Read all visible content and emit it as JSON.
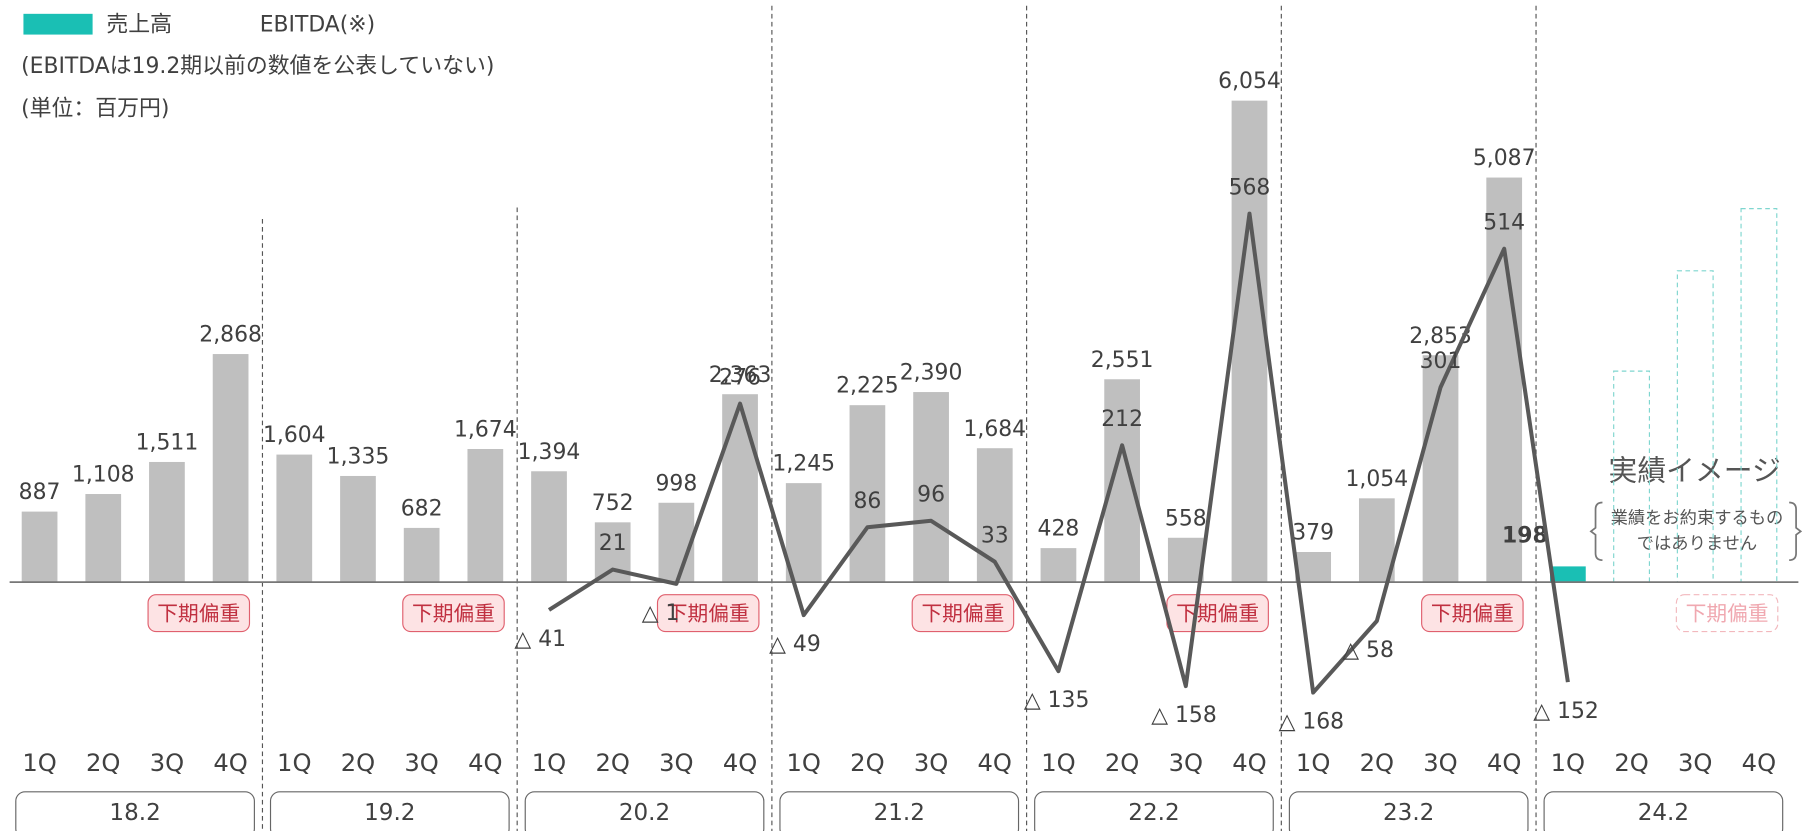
{
  "chart_data": {
    "type": "bar_line",
    "legend_notes": [
      "(EBITDAは19.2期以前の数値を公表していない)",
      "(単位：百万円)"
    ],
    "categories": [
      "1Q",
      "2Q",
      "3Q",
      "4Q",
      "1Q",
      "2Q",
      "3Q",
      "4Q",
      "1Q",
      "2Q",
      "3Q",
      "4Q",
      "1Q",
      "2Q",
      "3Q",
      "4Q",
      "1Q",
      "2Q",
      "3Q",
      "4Q",
      "1Q",
      "2Q",
      "3Q",
      "4Q",
      "1Q",
      "2Q",
      "3Q",
      "4Q"
    ],
    "groups": [
      {
        "label": "18.2",
        "note": "下期偏重"
      },
      {
        "label": "19.2",
        "note": "下期偏重"
      },
      {
        "label": "20.2",
        "note": "下期偏重"
      },
      {
        "label": "21.2",
        "note": "下期偏重"
      },
      {
        "label": "22.2",
        "note": "下期偏重"
      },
      {
        "label": "23.2",
        "note": "下期偏重"
      },
      {
        "label": "24.2",
        "note": "下期偏重"
      }
    ],
    "series": [
      {
        "name": "売上高",
        "color": "#1abfb4",
        "colors": [
          "#bfbfbf",
          "#bfbfbf",
          "#bfbfbf",
          "#bfbfbf",
          "#bfbfbf",
          "#bfbfbf",
          "#bfbfbf",
          "#bfbfbf",
          "#bfbfbf",
          "#bfbfbf",
          "#bfbfbf",
          "#bfbfbf",
          "#bfbfbf",
          "#bfbfbf",
          "#bfbfbf",
          "#bfbfbf",
          "#bfbfbf",
          "#bfbfbf",
          "#bfbfbf",
          "#bfbfbf",
          "#bfbfbf",
          "#bfbfbf",
          "#bfbfbf",
          "#bfbfbf",
          "#1abfb4",
          null,
          null,
          null
        ],
        "values": [
          887,
          1108,
          1511,
          2868,
          1604,
          1335,
          682,
          1674,
          1394,
          752,
          998,
          2363,
          1245,
          2225,
          2390,
          1684,
          428,
          2551,
          558,
          6054,
          379,
          1054,
          2853,
          5087,
          198,
          null,
          null,
          null
        ],
        "value_labels": [
          "887",
          "1,108",
          "1,511",
          "2,868",
          "1,604",
          "1,335",
          "682",
          "1,674",
          "1,394",
          "752",
          "998",
          "2,363",
          "1,245",
          "2,225",
          "2,390",
          "1,684",
          "428",
          "2,551",
          "558",
          "6,054",
          "379",
          "1,054",
          "2,853",
          "5,087",
          "198",
          null,
          null,
          null
        ]
      },
      {
        "name": "EBITDA(※)",
        "color": "#595959",
        "axis": "y2",
        "values": [
          null,
          null,
          null,
          null,
          null,
          null,
          null,
          null,
          -41,
          21,
          -1,
          276,
          -49,
          86,
          96,
          33,
          -135,
          212,
          -158,
          568,
          -168,
          -58,
          301,
          514,
          -152,
          null,
          null,
          null
        ],
        "value_labels": [
          null,
          null,
          null,
          null,
          null,
          null,
          null,
          null,
          "△ 41",
          "21",
          "△ 1",
          "276",
          "△ 49",
          "86",
          "96",
          "33",
          "△ 135",
          "212",
          "△ 158",
          "568",
          "△ 168",
          "△ 58",
          "301",
          "514",
          "△ 152",
          null,
          null,
          null
        ]
      }
    ],
    "ylim": [
      -2100,
      6450
    ],
    "y2lim": [
      -255,
      790
    ],
    "annotation": {
      "title": "実績イメージ",
      "lines": [
        "業績をお約束するもの",
        "ではありません"
      ]
    }
  }
}
